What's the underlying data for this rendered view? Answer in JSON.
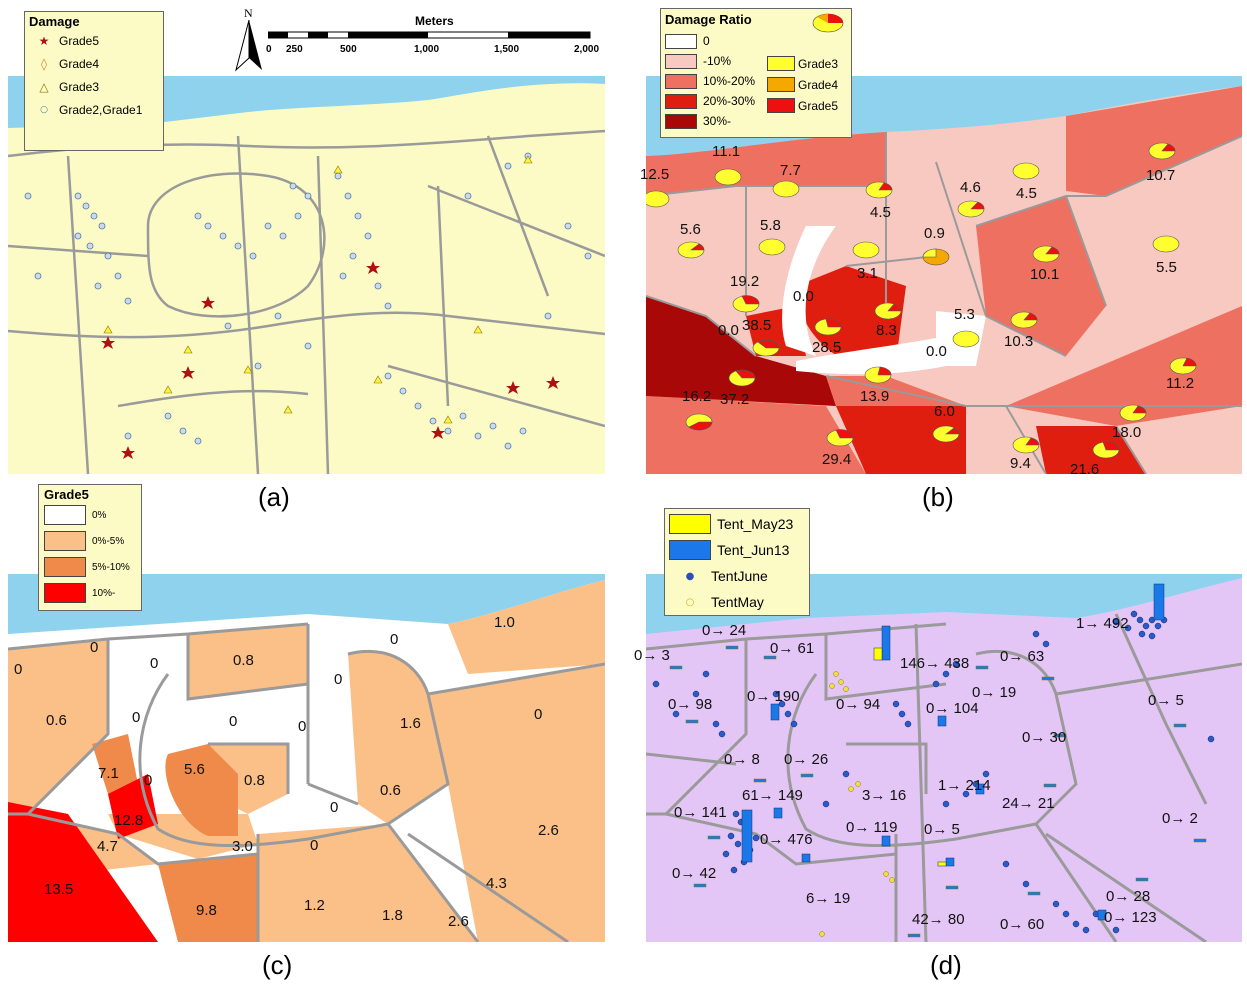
{
  "captions": {
    "a": "(a)",
    "b": "(b)",
    "c": "(c)",
    "d": "(d)"
  },
  "panel_a": {
    "legend": {
      "title": "Damage",
      "items": [
        {
          "label": "Grade5",
          "symbol": "star",
          "color": "#b01010"
        },
        {
          "label": "Grade4",
          "symbol": "diamond",
          "color": "#d98030"
        },
        {
          "label": "Grade3",
          "symbol": "triangle",
          "color": "#c8b800"
        },
        {
          "label": "Grade2,Grade1",
          "symbol": "circle",
          "color": "#6a8fbf"
        }
      ]
    },
    "north": "N",
    "scale": {
      "title": "Meters",
      "ticks": [
        "0",
        "250",
        "500",
        "1,000",
        "1,500",
        "2,000"
      ]
    }
  },
  "panel_b": {
    "legend": {
      "title": "Damage Ratio",
      "classes": [
        {
          "label": "0",
          "color": "#ffffff"
        },
        {
          "label": "-10%",
          "color": "#f7c9c0"
        },
        {
          "label": "10%-20%",
          "color": "#ee7060"
        },
        {
          "label": "20%-30%",
          "color": "#e01e10"
        },
        {
          "label": "30%-",
          "color": "#a80808"
        }
      ],
      "grades": [
        {
          "label": "Grade3",
          "color": "#ffff30"
        },
        {
          "label": "Grade4",
          "color": "#f5a800"
        },
        {
          "label": "Grade5",
          "color": "#ee1010"
        }
      ]
    },
    "values": [
      "12.5",
      "11.1",
      "7.7",
      "5.6",
      "5.8",
      "4.5",
      "4.6",
      "4.5",
      "10.7",
      "0.9",
      "19.2",
      "3.1",
      "10.1",
      "5.5",
      "0.0",
      "0.0",
      "38.5",
      "8.3",
      "28.5",
      "5.3",
      "10.3",
      "0.0",
      "16.2",
      "37.2",
      "13.9",
      "11.2",
      "6.0",
      "18.0",
      "29.4",
      "9.4",
      "21.6"
    ]
  },
  "panel_c": {
    "legend": {
      "title": "Grade5",
      "classes": [
        {
          "label": "0%",
          "color": "#ffffff"
        },
        {
          "label": "0%-5%",
          "color": "#fbc088"
        },
        {
          "label": "5%-10%",
          "color": "#ef8a4a"
        },
        {
          "label": "10%-",
          "color": "#ff0000"
        }
      ]
    },
    "values": [
      "0",
      "0",
      "0",
      "0.8",
      "0",
      "0",
      "1.0",
      "0.6",
      "0",
      "0",
      "0",
      "1.6",
      "0",
      "7.1",
      "0",
      "5.6",
      "0.8",
      "0.6",
      "0",
      "12.8",
      "4.7",
      "3.0",
      "0",
      "2.6",
      "13.5",
      "9.8",
      "1.2",
      "1.8",
      "2.6",
      "4.3"
    ]
  },
  "panel_d": {
    "legend": [
      {
        "label": "Tent_May23",
        "kind": "bar",
        "color": "#ffff00"
      },
      {
        "label": "Tent_Jun13",
        "kind": "bar",
        "color": "#1a78e8"
      },
      {
        "label": "TentJune",
        "kind": "dot",
        "color": "#2a50b8"
      },
      {
        "label": "TentMay",
        "kind": "dot",
        "color": "#f0e040"
      }
    ],
    "values": [
      "0→ 24",
      "0→ 3",
      "0→ 61",
      "146→ 438",
      "0→ 63",
      "1→ 492",
      "0→ 98",
      "0→ 190",
      "0→ 94",
      "0→ 104",
      "0→ 19",
      "0→ 5",
      "0→ 30",
      "0→ 8",
      "0→ 26",
      "61→ 149",
      "3→ 16",
      "1→ 214",
      "24→ 21",
      "0→ 141",
      "0→ 476",
      "0→ 119",
      "0→ 5",
      "0→ 2",
      "0→ 42",
      "6→ 19",
      "42→ 80",
      "0→ 60",
      "0→ 28",
      "0→ 123"
    ]
  }
}
